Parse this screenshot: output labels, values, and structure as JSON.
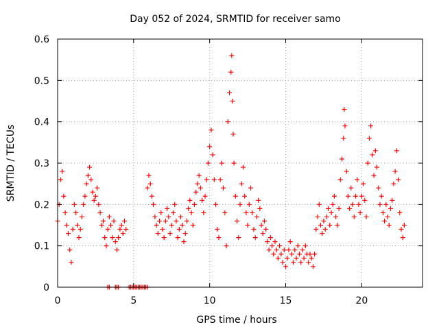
{
  "chart_data": {
    "type": "scatter",
    "title": "Day 052 of 2024, SRMTID for receiver samo",
    "xlabel": "GPS time / hours",
    "ylabel": "SRMTID / TECUs",
    "xlim": [
      0,
      24
    ],
    "ylim": [
      0,
      0.6
    ],
    "x_ticks": [
      0,
      5,
      10,
      15,
      20
    ],
    "y_ticks": [
      0,
      0.1,
      0.2,
      0.3,
      0.4,
      0.5,
      0.6
    ],
    "x_tick_labels": [
      "0",
      "5",
      "10",
      "15",
      "20"
    ],
    "y_tick_labels": [
      "0",
      "0.1",
      "0.2",
      "0.3",
      "0.4",
      "0.5",
      "0.6"
    ],
    "grid": true,
    "marker": "+",
    "color": "#ff0000",
    "series": [
      {
        "name": "SRMTID",
        "points": [
          [
            0.0,
            0.16
          ],
          [
            0.1,
            0.2
          ],
          [
            0.2,
            0.26
          ],
          [
            0.3,
            0.28
          ],
          [
            0.4,
            0.22
          ],
          [
            0.5,
            0.18
          ],
          [
            0.6,
            0.15
          ],
          [
            0.7,
            0.13
          ],
          [
            0.8,
            0.09
          ],
          [
            0.9,
            0.06
          ],
          [
            1.0,
            0.14
          ],
          [
            1.1,
            0.2
          ],
          [
            1.2,
            0.18
          ],
          [
            1.3,
            0.15
          ],
          [
            1.4,
            0.12
          ],
          [
            1.5,
            0.14
          ],
          [
            1.6,
            0.17
          ],
          [
            1.7,
            0.2
          ],
          [
            1.8,
            0.22
          ],
          [
            1.9,
            0.25
          ],
          [
            2.0,
            0.27
          ],
          [
            2.1,
            0.29
          ],
          [
            2.2,
            0.26
          ],
          [
            2.3,
            0.23
          ],
          [
            2.4,
            0.21
          ],
          [
            2.5,
            0.22
          ],
          [
            2.6,
            0.24
          ],
          [
            2.7,
            0.2
          ],
          [
            2.8,
            0.18
          ],
          [
            2.9,
            0.15
          ],
          [
            3.0,
            0.16
          ],
          [
            3.1,
            0.12
          ],
          [
            3.2,
            0.1
          ],
          [
            3.3,
            0.14
          ],
          [
            3.4,
            0.17
          ],
          [
            3.5,
            0.15
          ],
          [
            3.6,
            0.12
          ],
          [
            3.7,
            0.16
          ],
          [
            3.8,
            0.11
          ],
          [
            3.9,
            0.09
          ],
          [
            4.0,
            0.12
          ],
          [
            4.1,
            0.14
          ],
          [
            4.2,
            0.15
          ],
          [
            4.3,
            0.13
          ],
          [
            4.4,
            0.16
          ],
          [
            4.5,
            0.14
          ],
          [
            3.3,
            0
          ],
          [
            3.4,
            0
          ],
          [
            3.8,
            0
          ],
          [
            3.9,
            0
          ],
          [
            4.0,
            0
          ],
          [
            4.7,
            0
          ],
          [
            4.8,
            0
          ],
          [
            4.9,
            0
          ],
          [
            5.0,
            0
          ],
          [
            5.1,
            0
          ],
          [
            5.2,
            0
          ],
          [
            5.3,
            0
          ],
          [
            5.4,
            0
          ],
          [
            5.5,
            0
          ],
          [
            5.6,
            0
          ],
          [
            5.7,
            0
          ],
          [
            5.8,
            0
          ],
          [
            5.9,
            0
          ],
          [
            5.9,
            0.24
          ],
          [
            6.0,
            0.27
          ],
          [
            6.1,
            0.25
          ],
          [
            6.2,
            0.22
          ],
          [
            6.3,
            0.2
          ],
          [
            6.4,
            0.17
          ],
          [
            6.5,
            0.15
          ],
          [
            6.6,
            0.13
          ],
          [
            6.7,
            0.16
          ],
          [
            6.8,
            0.18
          ],
          [
            6.9,
            0.14
          ],
          [
            7.0,
            0.12
          ],
          [
            7.1,
            0.16
          ],
          [
            7.2,
            0.19
          ],
          [
            7.3,
            0.17
          ],
          [
            7.4,
            0.13
          ],
          [
            7.5,
            0.15
          ],
          [
            7.6,
            0.18
          ],
          [
            7.7,
            0.2
          ],
          [
            7.8,
            0.16
          ],
          [
            7.9,
            0.12
          ],
          [
            8.0,
            0.14
          ],
          [
            8.1,
            0.17
          ],
          [
            8.2,
            0.15
          ],
          [
            8.3,
            0.11
          ],
          [
            8.4,
            0.13
          ],
          [
            8.5,
            0.16
          ],
          [
            8.6,
            0.19
          ],
          [
            8.7,
            0.21
          ],
          [
            8.8,
            0.18
          ],
          [
            8.9,
            0.15
          ],
          [
            9.0,
            0.2
          ],
          [
            9.1,
            0.23
          ],
          [
            9.2,
            0.25
          ],
          [
            9.3,
            0.27
          ],
          [
            9.4,
            0.24
          ],
          [
            9.5,
            0.21
          ],
          [
            9.6,
            0.18
          ],
          [
            9.7,
            0.22
          ],
          [
            9.8,
            0.26
          ],
          [
            9.9,
            0.3
          ],
          [
            10.0,
            0.34
          ],
          [
            10.1,
            0.38
          ],
          [
            10.2,
            0.32
          ],
          [
            10.3,
            0.26
          ],
          [
            10.4,
            0.2
          ],
          [
            10.5,
            0.14
          ],
          [
            10.6,
            0.12
          ],
          [
            10.7,
            0.26
          ],
          [
            10.8,
            0.3
          ],
          [
            10.9,
            0.24
          ],
          [
            11.0,
            0.18
          ],
          [
            11.1,
            0.1
          ],
          [
            11.2,
            0.4
          ],
          [
            11.3,
            0.47
          ],
          [
            11.4,
            0.52
          ],
          [
            11.45,
            0.56
          ],
          [
            11.5,
            0.45
          ],
          [
            11.55,
            0.37
          ],
          [
            11.6,
            0.3
          ],
          [
            11.7,
            0.22
          ],
          [
            11.8,
            0.16
          ],
          [
            11.9,
            0.12
          ],
          [
            12.0,
            0.2
          ],
          [
            12.1,
            0.25
          ],
          [
            12.2,
            0.29
          ],
          [
            12.3,
            0.22
          ],
          [
            12.4,
            0.18
          ],
          [
            12.5,
            0.15
          ],
          [
            12.6,
            0.2
          ],
          [
            12.7,
            0.24
          ],
          [
            12.8,
            0.18
          ],
          [
            12.9,
            0.14
          ],
          [
            13.0,
            0.12
          ],
          [
            13.1,
            0.17
          ],
          [
            13.2,
            0.21
          ],
          [
            13.3,
            0.19
          ],
          [
            13.4,
            0.15
          ],
          [
            13.5,
            0.13
          ],
          [
            13.6,
            0.16
          ],
          [
            13.7,
            0.14
          ],
          [
            13.8,
            0.11
          ],
          [
            13.9,
            0.09
          ],
          [
            14.0,
            0.12
          ],
          [
            14.1,
            0.1
          ],
          [
            14.2,
            0.08
          ],
          [
            14.3,
            0.11
          ],
          [
            14.4,
            0.09
          ],
          [
            14.5,
            0.07
          ],
          [
            14.6,
            0.1
          ],
          [
            14.7,
            0.08
          ],
          [
            14.8,
            0.06
          ],
          [
            14.9,
            0.09
          ],
          [
            15.0,
            0.05
          ],
          [
            15.1,
            0.07
          ],
          [
            15.2,
            0.09
          ],
          [
            15.3,
            0.11
          ],
          [
            15.4,
            0.08
          ],
          [
            15.5,
            0.06
          ],
          [
            15.6,
            0.09
          ],
          [
            15.7,
            0.07
          ],
          [
            15.8,
            0.1
          ],
          [
            15.9,
            0.08
          ],
          [
            16.0,
            0.06
          ],
          [
            16.1,
            0.09
          ],
          [
            16.2,
            0.07
          ],
          [
            16.3,
            0.1
          ],
          [
            16.4,
            0.08
          ],
          [
            16.5,
            0.06
          ],
          [
            16.6,
            0.08
          ],
          [
            16.7,
            0.07
          ],
          [
            16.8,
            0.05
          ],
          [
            16.9,
            0.08
          ],
          [
            17.0,
            0.14
          ],
          [
            17.1,
            0.17
          ],
          [
            17.2,
            0.2
          ],
          [
            17.3,
            0.15
          ],
          [
            17.4,
            0.13
          ],
          [
            17.5,
            0.16
          ],
          [
            17.6,
            0.14
          ],
          [
            17.7,
            0.17
          ],
          [
            17.8,
            0.19
          ],
          [
            17.9,
            0.15
          ],
          [
            18.0,
            0.18
          ],
          [
            18.1,
            0.2
          ],
          [
            18.2,
            0.22
          ],
          [
            18.3,
            0.17
          ],
          [
            18.4,
            0.15
          ],
          [
            18.5,
            0.19
          ],
          [
            18.6,
            0.26
          ],
          [
            18.7,
            0.31
          ],
          [
            18.8,
            0.36
          ],
          [
            18.85,
            0.43
          ],
          [
            18.9,
            0.39
          ],
          [
            19.0,
            0.28
          ],
          [
            19.1,
            0.22
          ],
          [
            19.2,
            0.19
          ],
          [
            19.3,
            0.24
          ],
          [
            19.4,
            0.2
          ],
          [
            19.5,
            0.17
          ],
          [
            19.6,
            0.22
          ],
          [
            19.7,
            0.26
          ],
          [
            19.8,
            0.2
          ],
          [
            19.9,
            0.18
          ],
          [
            20.0,
            0.22
          ],
          [
            20.1,
            0.25
          ],
          [
            20.2,
            0.21
          ],
          [
            20.3,
            0.17
          ],
          [
            20.4,
            0.3
          ],
          [
            20.5,
            0.36
          ],
          [
            20.6,
            0.39
          ],
          [
            20.7,
            0.32
          ],
          [
            20.8,
            0.27
          ],
          [
            20.9,
            0.33
          ],
          [
            21.0,
            0.29
          ],
          [
            21.1,
            0.24
          ],
          [
            21.2,
            0.2
          ],
          [
            21.3,
            0.22
          ],
          [
            21.4,
            0.18
          ],
          [
            21.5,
            0.16
          ],
          [
            21.6,
            0.2
          ],
          [
            21.7,
            0.17
          ],
          [
            21.8,
            0.15
          ],
          [
            21.9,
            0.19
          ],
          [
            22.0,
            0.21
          ],
          [
            22.1,
            0.25
          ],
          [
            22.2,
            0.28
          ],
          [
            22.3,
            0.33
          ],
          [
            22.4,
            0.26
          ],
          [
            22.5,
            0.18
          ],
          [
            22.6,
            0.14
          ],
          [
            22.7,
            0.12
          ],
          [
            22.8,
            0.15
          ]
        ]
      }
    ]
  }
}
